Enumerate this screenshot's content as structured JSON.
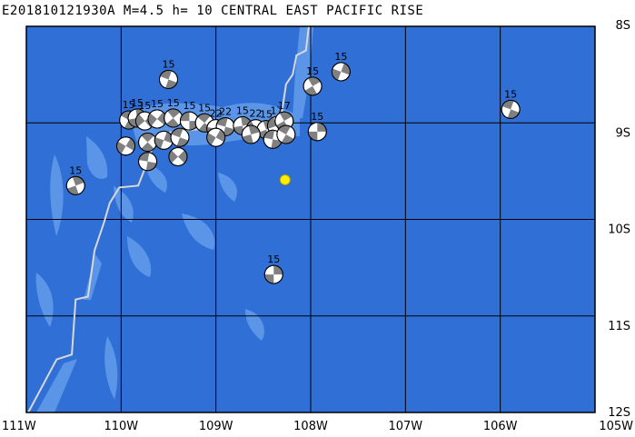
{
  "title": "E201810121930A M=4.5 h= 10 CENTRAL EAST PACIFIC RISE",
  "map": {
    "lon_range": [
      -111,
      -105
    ],
    "lat_range": [
      -12,
      -8
    ],
    "lon_ticks": [
      {
        "value": -111,
        "label": "111W"
      },
      {
        "value": -110,
        "label": "110W"
      },
      {
        "value": -109,
        "label": "109W"
      },
      {
        "value": -108,
        "label": "108W"
      },
      {
        "value": -107,
        "label": "107W"
      },
      {
        "value": -106,
        "label": "106W"
      },
      {
        "value": -105,
        "label": "105W"
      }
    ],
    "lat_ticks": [
      {
        "value": -8,
        "label": "8S"
      },
      {
        "value": -9,
        "label": "9S"
      },
      {
        "value": -10,
        "label": "10S"
      },
      {
        "value": -11,
        "label": "11S"
      },
      {
        "value": -12,
        "label": "12S"
      }
    ],
    "colors": {
      "ocean": "#2f6fd6",
      "ridge": "#5b95e8",
      "plate_boundary": "#d8d8d8",
      "grid": "#000000",
      "event_star": "#ffee00",
      "mech_dark": "#808080",
      "mech_light": "#ffffff"
    },
    "plate_boundary_path": [
      [
        -108.02,
        -8.0
      ],
      [
        -108.05,
        -8.25
      ],
      [
        -108.15,
        -8.3
      ],
      [
        -108.19,
        -8.5
      ],
      [
        -108.26,
        -8.6
      ],
      [
        -108.32,
        -9.0
      ],
      [
        -108.8,
        -9.02
      ],
      [
        -109.0,
        -9.05
      ],
      [
        -109.35,
        -9.08
      ],
      [
        -109.62,
        -9.12
      ],
      [
        -109.74,
        -9.45
      ],
      [
        -109.82,
        -9.65
      ],
      [
        -110.02,
        -9.67
      ],
      [
        -110.12,
        -9.83
      ],
      [
        -110.18,
        -10.03
      ],
      [
        -110.28,
        -10.32
      ],
      [
        -110.35,
        -10.8
      ],
      [
        -110.48,
        -10.83
      ],
      [
        -110.52,
        -11.4
      ],
      [
        -110.68,
        -11.45
      ],
      [
        -110.98,
        -12.0
      ]
    ],
    "event": {
      "lon": -108.27,
      "lat": -9.59
    },
    "mechanisms": [
      {
        "lon": -109.5,
        "lat": -8.55,
        "label": "15",
        "rot": 20
      },
      {
        "lon": -107.98,
        "lat": -8.62,
        "label": "15",
        "rot": 60
      },
      {
        "lon": -107.68,
        "lat": -8.47,
        "label": "15",
        "rot": 110
      },
      {
        "lon": -105.89,
        "lat": -8.86,
        "label": "15",
        "rot": 200
      },
      {
        "lon": -107.93,
        "lat": -9.09,
        "label": "15",
        "rot": 90
      },
      {
        "lon": -110.48,
        "lat": -9.65,
        "label": "15",
        "rot": 250
      },
      {
        "lon": -108.39,
        "lat": -10.57,
        "label": "15",
        "rot": 270
      },
      {
        "lon": -109.92,
        "lat": -8.97,
        "label": "15",
        "rot": 30
      },
      {
        "lon": -109.83,
        "lat": -8.95,
        "label": "15",
        "rot": 80
      },
      {
        "lon": -109.75,
        "lat": -8.98,
        "label": "15",
        "rot": 140
      },
      {
        "lon": -109.62,
        "lat": -8.96,
        "label": "15",
        "rot": 310
      },
      {
        "lon": -109.45,
        "lat": -8.95,
        "label": "15",
        "rot": 50
      },
      {
        "lon": -109.28,
        "lat": -8.98,
        "label": "15",
        "rot": 180
      },
      {
        "lon": -109.12,
        "lat": -9.0,
        "label": "15",
        "rot": 220
      },
      {
        "lon": -109.0,
        "lat": -9.06,
        "label": "22",
        "rot": 100
      },
      {
        "lon": -108.9,
        "lat": -9.04,
        "label": "22",
        "rot": 15
      },
      {
        "lon": -108.72,
        "lat": -9.03,
        "label": "15",
        "rot": 260
      },
      {
        "lon": -108.58,
        "lat": -9.06,
        "label": "22",
        "rot": 330
      },
      {
        "lon": -108.47,
        "lat": -9.07,
        "label": "15",
        "rot": 70
      },
      {
        "lon": -108.36,
        "lat": -9.03,
        "label": "17",
        "rot": 160
      },
      {
        "lon": -108.28,
        "lat": -8.98,
        "label": "17",
        "rot": 240
      },
      {
        "lon": -109.95,
        "lat": -9.24,
        "label": "",
        "rot": 120
      },
      {
        "lon": -109.72,
        "lat": -9.2,
        "label": "",
        "rot": 45
      },
      {
        "lon": -109.55,
        "lat": -9.18,
        "label": "",
        "rot": 290
      },
      {
        "lon": -109.38,
        "lat": -9.15,
        "label": "",
        "rot": 200
      },
      {
        "lon": -109.72,
        "lat": -9.4,
        "label": "",
        "rot": 10
      },
      {
        "lon": -109.4,
        "lat": -9.35,
        "label": "",
        "rot": 135
      },
      {
        "lon": -109.0,
        "lat": -9.15,
        "label": "",
        "rot": 300
      },
      {
        "lon": -108.63,
        "lat": -9.12,
        "label": "",
        "rot": 75
      },
      {
        "lon": -108.4,
        "lat": -9.17,
        "label": "",
        "rot": 190
      },
      {
        "lon": -108.26,
        "lat": -9.12,
        "label": "",
        "rot": 30
      }
    ]
  }
}
